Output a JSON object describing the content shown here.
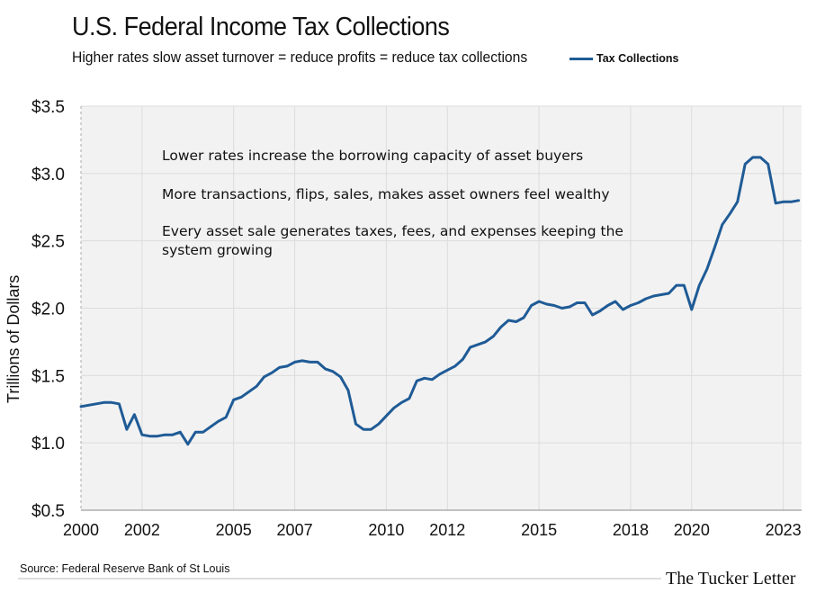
{
  "title": "U.S. Federal Income Tax Collections",
  "subtitle": "Higher rates slow asset turnover = reduce profits = reduce tax collections",
  "source": "Source: Federal Reserve Bank of St Louis",
  "brand": "The Tucker Letter",
  "colors": {
    "line": "#1f5b96",
    "plot_bg": "#f2f2f2",
    "grid": "#dcdcdc"
  },
  "annotations": [
    "Lower rates increase the borrowing capacity of asset buyers",
    "More transactions, flips, sales, makes asset owners feel wealthy",
    "Every asset sale generates taxes, fees, and expenses keeping the system growing"
  ],
  "chart_data": {
    "type": "line",
    "title": "U.S. Federal Income Tax Collections",
    "subtitle": "Higher rates slow asset turnover = reduce profits = reduce tax collections",
    "xlabel": "",
    "ylabel": "Trillions of Dollars",
    "ylim": [
      0.5,
      3.5
    ],
    "xlim": [
      2000,
      2023.6
    ],
    "grid": true,
    "legend": "top-right",
    "x_tick_labels": [
      "2000",
      "2002",
      "2005",
      "2007",
      "2010",
      "2012",
      "2015",
      "2018",
      "2020",
      "2023"
    ],
    "y_tick_labels": [
      "$3.5",
      "$3.0",
      "$2.5",
      "$2.0",
      "$1.5",
      "$1.0",
      "$0.5"
    ],
    "y_tick_values": [
      3.5,
      3.0,
      2.5,
      2.0,
      1.5,
      1.0,
      0.5
    ],
    "series": [
      {
        "name": "Tax Collections",
        "x": [
          2000.0,
          2000.25,
          2000.5,
          2000.75,
          2001.0,
          2001.25,
          2001.5,
          2001.75,
          2002.0,
          2002.25,
          2002.5,
          2002.75,
          2003.0,
          2003.25,
          2003.5,
          2003.75,
          2004.0,
          2004.25,
          2004.5,
          2004.75,
          2005.0,
          2005.25,
          2005.5,
          2005.75,
          2006.0,
          2006.25,
          2006.5,
          2006.75,
          2007.0,
          2007.25,
          2007.5,
          2007.75,
          2008.0,
          2008.25,
          2008.5,
          2008.75,
          2009.0,
          2009.25,
          2009.5,
          2009.75,
          2010.0,
          2010.25,
          2010.5,
          2010.75,
          2011.0,
          2011.25,
          2011.5,
          2011.75,
          2012.0,
          2012.25,
          2012.5,
          2012.75,
          2013.0,
          2013.25,
          2013.5,
          2013.75,
          2014.0,
          2014.25,
          2014.5,
          2014.75,
          2015.0,
          2015.25,
          2015.5,
          2015.75,
          2016.0,
          2016.25,
          2016.5,
          2016.75,
          2017.0,
          2017.25,
          2017.5,
          2017.75,
          2018.0,
          2018.25,
          2018.5,
          2018.75,
          2019.0,
          2019.25,
          2019.5,
          2019.75,
          2020.0,
          2020.25,
          2020.5,
          2020.75,
          2021.0,
          2021.25,
          2021.5,
          2021.75,
          2022.0,
          2022.25,
          2022.5,
          2022.75,
          2023.0,
          2023.25,
          2023.5
        ],
        "values": [
          1.27,
          1.28,
          1.29,
          1.3,
          1.3,
          1.29,
          1.1,
          1.21,
          1.06,
          1.05,
          1.05,
          1.06,
          1.06,
          1.08,
          0.99,
          1.08,
          1.08,
          1.12,
          1.16,
          1.19,
          1.32,
          1.34,
          1.38,
          1.42,
          1.49,
          1.52,
          1.56,
          1.57,
          1.6,
          1.61,
          1.6,
          1.6,
          1.55,
          1.53,
          1.49,
          1.39,
          1.14,
          1.1,
          1.1,
          1.14,
          1.2,
          1.26,
          1.3,
          1.33,
          1.46,
          1.48,
          1.47,
          1.51,
          1.54,
          1.57,
          1.62,
          1.71,
          1.73,
          1.75,
          1.79,
          1.86,
          1.91,
          1.9,
          1.93,
          2.02,
          2.05,
          2.03,
          2.02,
          2.0,
          2.01,
          2.04,
          2.04,
          1.95,
          1.98,
          2.02,
          2.05,
          1.99,
          2.02,
          2.04,
          2.07,
          2.09,
          2.1,
          2.11,
          2.17,
          2.17,
          1.99,
          2.17,
          2.29,
          2.45,
          2.62,
          2.7,
          2.79,
          3.07,
          3.12,
          3.12,
          3.07,
          2.78,
          2.79,
          2.79,
          2.8
        ]
      }
    ]
  }
}
